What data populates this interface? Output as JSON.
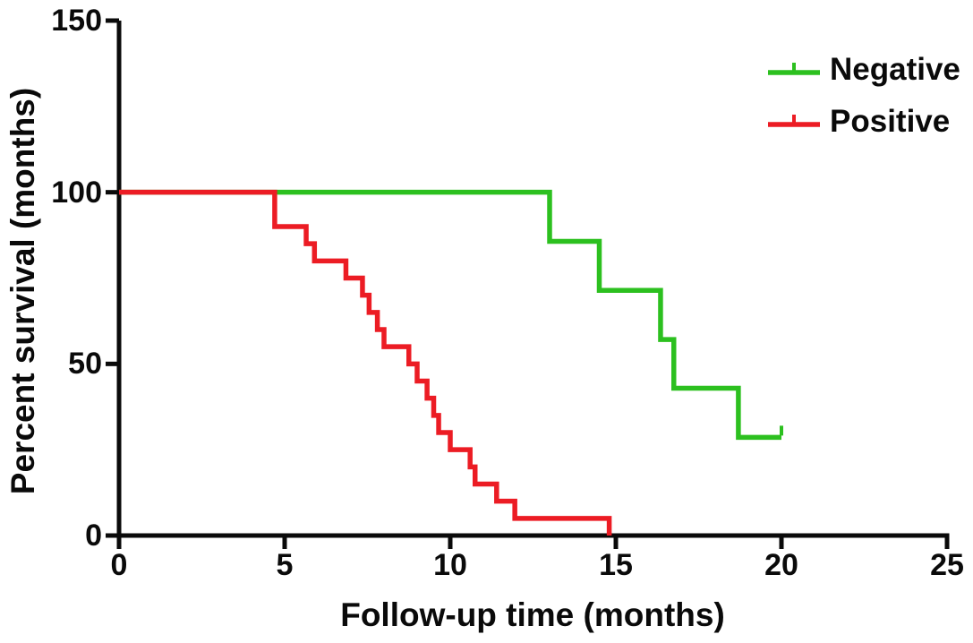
{
  "chart_data": {
    "type": "line",
    "subtype": "kaplan-meier-step",
    "title": "",
    "xlabel": "Follow-up time (months)",
    "ylabel": "Percent survival (months)",
    "xlim": [
      0,
      25
    ],
    "ylim": [
      0,
      150
    ],
    "x_ticks": [
      0,
      5,
      10,
      15,
      20,
      25
    ],
    "y_ticks": [
      0,
      50,
      100,
      150
    ],
    "grid": false,
    "legend_position": "top-right",
    "axis_color": "#0a0a0a",
    "background_color": "#ffffff",
    "series": [
      {
        "name": "Negative",
        "color": "#2cc01f",
        "points": [
          [
            0,
            100
          ],
          [
            13,
            100
          ],
          [
            13,
            85.7
          ],
          [
            14.5,
            85.7
          ],
          [
            14.5,
            71.4
          ],
          [
            16.35,
            71.4
          ],
          [
            16.35,
            57.1
          ],
          [
            16.75,
            57.1
          ],
          [
            16.75,
            42.9
          ],
          [
            18.7,
            42.9
          ],
          [
            18.7,
            28.6
          ],
          [
            20,
            28.6
          ]
        ],
        "censor_marks": [
          [
            20,
            28.6
          ]
        ]
      },
      {
        "name": "Positive",
        "color": "#ec1c24",
        "points": [
          [
            0,
            100
          ],
          [
            4.7,
            100
          ],
          [
            4.7,
            90
          ],
          [
            5.65,
            90
          ],
          [
            5.65,
            85
          ],
          [
            5.9,
            85
          ],
          [
            5.9,
            80
          ],
          [
            6.85,
            80
          ],
          [
            6.85,
            75
          ],
          [
            7.35,
            75
          ],
          [
            7.35,
            70
          ],
          [
            7.55,
            70
          ],
          [
            7.55,
            65
          ],
          [
            7.8,
            65
          ],
          [
            7.8,
            60
          ],
          [
            8.0,
            60
          ],
          [
            8.0,
            55
          ],
          [
            8.75,
            55
          ],
          [
            8.75,
            50
          ],
          [
            9.0,
            50
          ],
          [
            9.0,
            45
          ],
          [
            9.3,
            45
          ],
          [
            9.3,
            40
          ],
          [
            9.5,
            40
          ],
          [
            9.5,
            35
          ],
          [
            9.65,
            35
          ],
          [
            9.65,
            30
          ],
          [
            10.0,
            30
          ],
          [
            10.0,
            25
          ],
          [
            10.6,
            25
          ],
          [
            10.6,
            20
          ],
          [
            10.75,
            20
          ],
          [
            10.75,
            15
          ],
          [
            11.4,
            15
          ],
          [
            11.4,
            10
          ],
          [
            11.95,
            10
          ],
          [
            11.95,
            5
          ],
          [
            14.8,
            5
          ],
          [
            14.8,
            0
          ]
        ],
        "censor_marks": []
      }
    ]
  }
}
